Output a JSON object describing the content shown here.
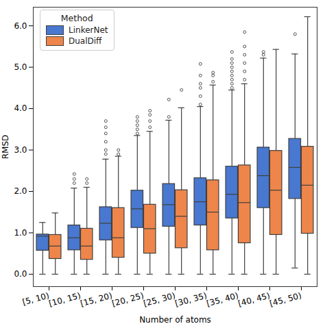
{
  "chart_data": {
    "type": "box",
    "x_label": "Number of atoms",
    "y_label": "RMSD",
    "legend_title": "Method",
    "legend": "upper left",
    "grid": false,
    "categories": [
      "[5, 10)",
      "[10, 15)",
      "[15, 20)",
      "[20, 25)",
      "[25, 30)",
      "[30, 35)",
      "[35, 40)",
      "[40, 45)",
      "[45, 50)"
    ],
    "ylim": [
      -0.3,
      6.45
    ],
    "yticks": [
      0,
      1,
      2,
      3,
      4,
      5,
      6
    ],
    "series": [
      {
        "name": "LinkerNet",
        "color": "#4878d0",
        "min": [
          0,
          0,
          0,
          0,
          0,
          0,
          0,
          0,
          0.15
        ],
        "q1": [
          0.57,
          0.58,
          0.82,
          1.12,
          1.15,
          1.18,
          1.35,
          1.6,
          1.82
        ],
        "median": [
          0.92,
          0.88,
          1.23,
          1.58,
          1.68,
          1.75,
          1.93,
          2.38,
          2.58
        ],
        "q3": [
          0.96,
          1.18,
          1.62,
          2.02,
          2.18,
          2.32,
          2.6,
          3.06,
          3.27
        ],
        "max": [
          1.25,
          2.08,
          2.78,
          3.35,
          3.72,
          4.05,
          4.45,
          5.22,
          5.32
        ],
        "outliers": [
          [],
          [
            2.2,
            2.3,
            2.42
          ],
          [
            2.9,
            3.0,
            3.2,
            3.4,
            3.55,
            3.7
          ],
          [
            3.4,
            3.5,
            3.6,
            3.7,
            3.8
          ],
          [
            3.8,
            4.22
          ],
          [
            4.1,
            4.3,
            4.5,
            4.6,
            4.8,
            5.08
          ],
          [
            4.5,
            4.6,
            4.7,
            4.8,
            4.9,
            5.0,
            5.1,
            5.2,
            5.37
          ],
          [
            5.3,
            5.37
          ],
          [
            5.8
          ]
        ]
      },
      {
        "name": "DualDiff",
        "color": "#ee854a",
        "min": [
          0,
          0,
          0,
          0,
          0,
          0,
          0,
          0,
          0
        ],
        "q1": [
          0.37,
          0.35,
          0.4,
          0.5,
          0.63,
          0.58,
          0.75,
          0.95,
          0.98
        ],
        "median": [
          0.68,
          0.68,
          0.88,
          1.1,
          1.4,
          1.5,
          1.73,
          2.03,
          2.15
        ],
        "q3": [
          0.95,
          1.1,
          1.6,
          1.68,
          2.03,
          2.27,
          2.63,
          2.98,
          3.08
        ],
        "max": [
          1.48,
          2.1,
          2.85,
          3.45,
          4.02,
          4.57,
          4.6,
          5.43,
          6.22
        ],
        "outliers": [
          [],
          [
            2.2,
            2.3
          ],
          [
            2.9,
            3.0
          ],
          [
            3.55,
            3.7,
            3.85,
            3.95
          ],
          [
            4.45
          ],
          [
            4.65,
            4.8,
            4.87
          ],
          [
            4.7,
            4.9,
            5.1,
            5.3,
            5.5,
            5.85
          ],
          [],
          []
        ]
      }
    ]
  }
}
